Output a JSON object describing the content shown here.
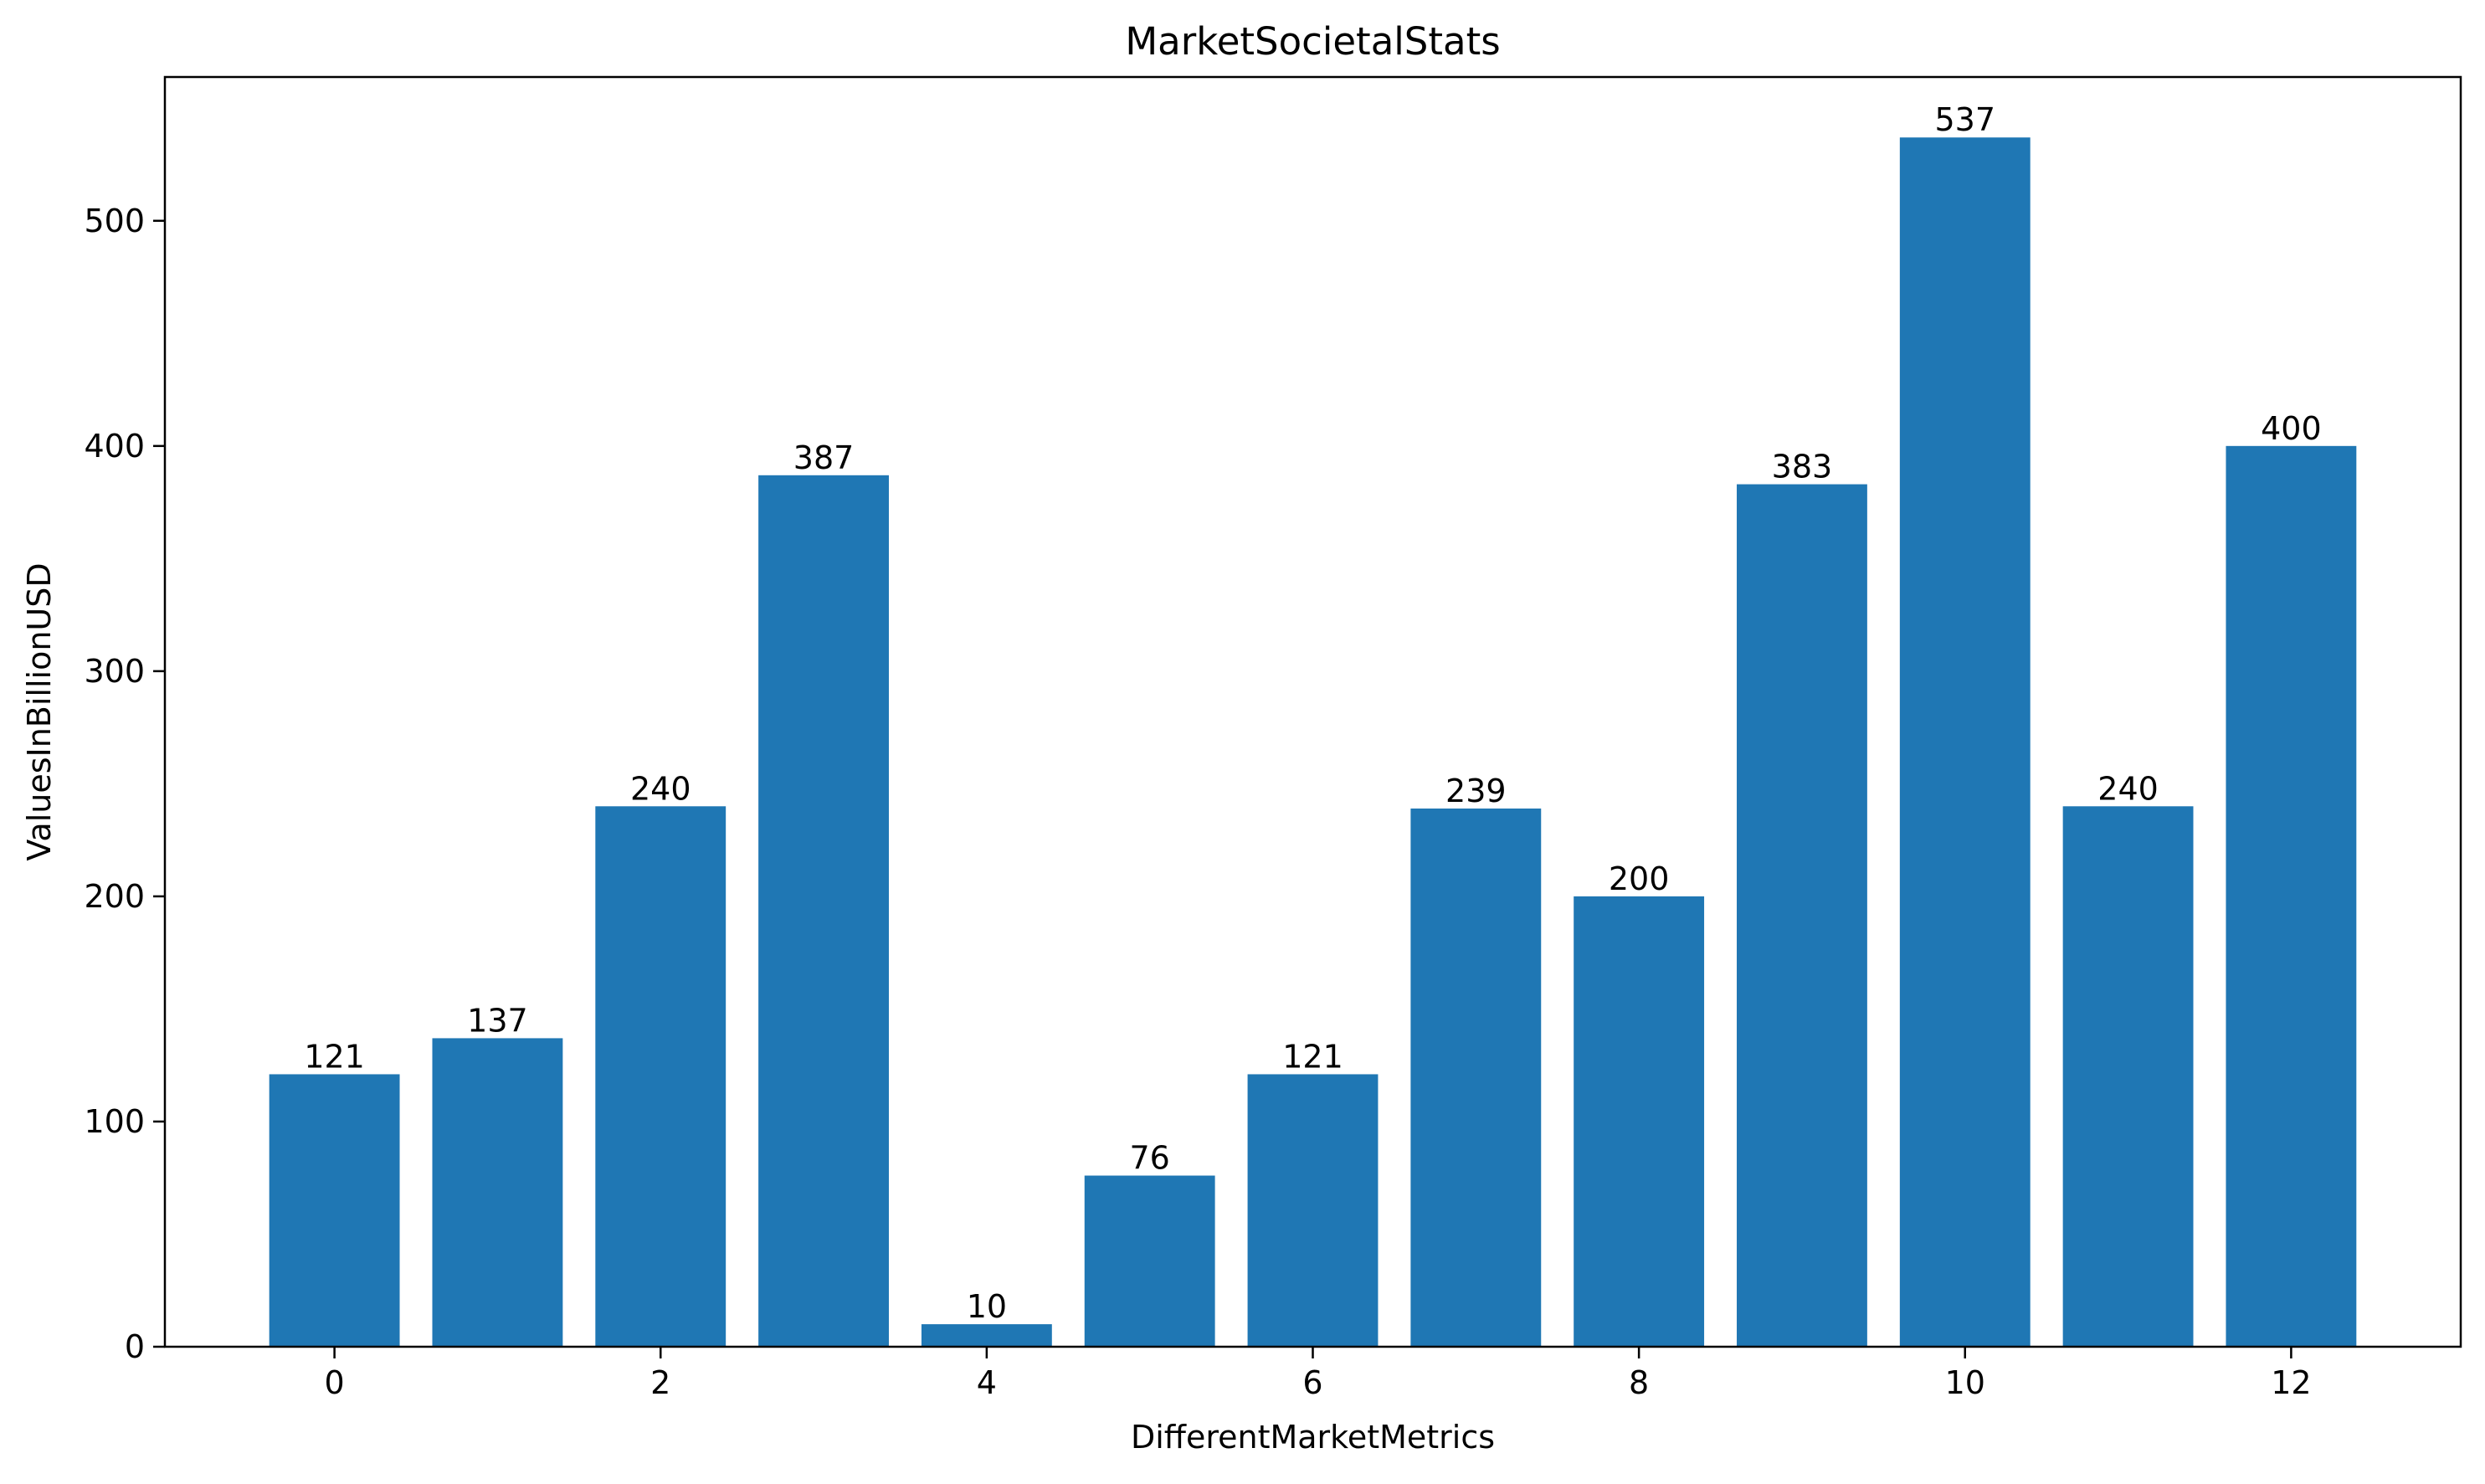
{
  "chart_data": {
    "type": "bar",
    "title": "MarketSocietalStats",
    "xlabel": "DifferentMarketMetrics",
    "ylabel": "ValuesInBillionUSD",
    "x": [
      0,
      1,
      2,
      3,
      4,
      5,
      6,
      7,
      8,
      9,
      10,
      11,
      12
    ],
    "values": [
      121,
      137,
      240,
      387,
      10,
      76,
      121,
      239,
      200,
      383,
      537,
      240,
      400
    ],
    "data_labels": [
      "121",
      "137",
      "240",
      "387",
      "10",
      "76",
      "121",
      "239",
      "200",
      "383",
      "537",
      "240",
      "400"
    ],
    "xticks": [
      "0",
      "2",
      "4",
      "6",
      "8",
      "10",
      "12"
    ],
    "xtick_values": [
      0,
      2,
      4,
      6,
      8,
      10,
      12
    ],
    "yticks": [
      "0",
      "100",
      "200",
      "300",
      "400",
      "500"
    ],
    "ytick_values": [
      0,
      100,
      200,
      300,
      400,
      500
    ],
    "xlim": [
      -1.04,
      13.04
    ],
    "ylim": [
      0,
      563.85
    ],
    "bar_width": 0.8,
    "grid": false,
    "legend": "none",
    "bar_color": "#1f77b4"
  }
}
